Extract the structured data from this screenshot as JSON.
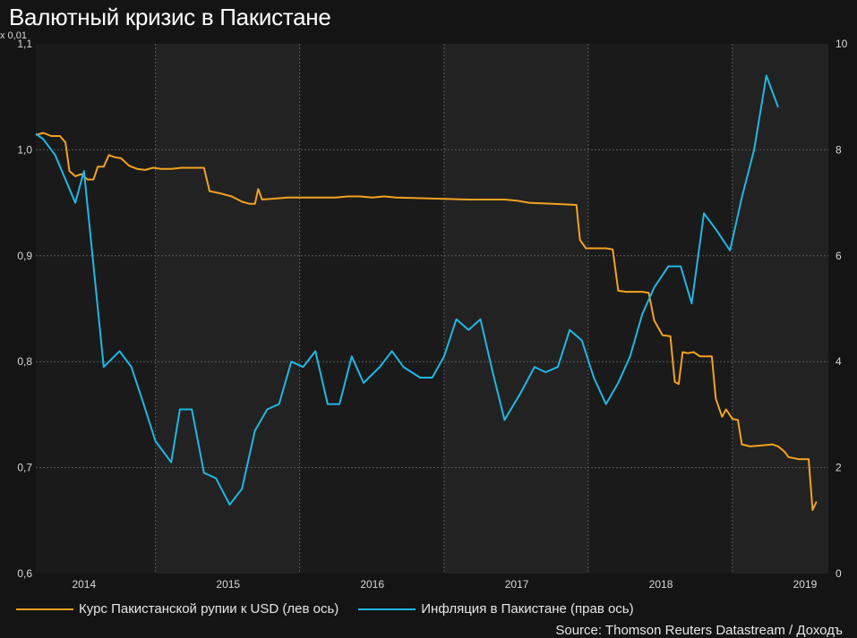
{
  "title": "Валютный кризис в Пакистане",
  "source": "Source: Thomson Reuters Datastream / Доходъ",
  "colors": {
    "background": "#141414",
    "plot_band_dark": "#1a1a1a",
    "plot_band_light": "#222222",
    "rupee": "#f3a221",
    "inflation": "#1fb7e4",
    "grid": "#5a5a5a"
  },
  "chart_data": {
    "type": "line",
    "title": "Валютный кризис в Пакистане",
    "left_axis": {
      "unit_label": "x 0,01",
      "ylim": [
        0.6,
        1.1
      ],
      "ticks": [
        "0,6",
        "0,7",
        "0,8",
        "0,9",
        "1,0",
        "1,1"
      ]
    },
    "right_axis": {
      "ylim": [
        0,
        10
      ],
      "ticks": [
        "0",
        "2",
        "4",
        "6",
        "8",
        "10"
      ]
    },
    "x_range": [
      "2013-09-01",
      "2019-03-01"
    ],
    "x_ticks": [
      "2014",
      "2015",
      "2016",
      "2017",
      "2018",
      "2019"
    ],
    "grid": true,
    "legend_position": "bottom-left",
    "series": [
      {
        "name": "Курс Пакистанской рупии к USD (лев ось)",
        "axis": "left",
        "color": "#f3a221",
        "points": [
          [
            "2013-09-01",
            1.014
          ],
          [
            "2013-09-20",
            1.016
          ],
          [
            "2013-10-10",
            1.013
          ],
          [
            "2013-11-01",
            1.013
          ],
          [
            "2013-11-15",
            1.007
          ],
          [
            "2013-11-25",
            0.98
          ],
          [
            "2013-12-10",
            0.975
          ],
          [
            "2013-12-25",
            0.977
          ],
          [
            "2014-01-10",
            0.972
          ],
          [
            "2014-01-25",
            0.972
          ],
          [
            "2014-02-05",
            0.984
          ],
          [
            "2014-02-20",
            0.984
          ],
          [
            "2014-03-05",
            0.995
          ],
          [
            "2014-03-20",
            0.993
          ],
          [
            "2014-04-05",
            0.992
          ],
          [
            "2014-04-25",
            0.985
          ],
          [
            "2014-05-15",
            0.982
          ],
          [
            "2014-06-05",
            0.981
          ],
          [
            "2014-06-25",
            0.983
          ],
          [
            "2014-07-15",
            0.982
          ],
          [
            "2014-08-10",
            0.982
          ],
          [
            "2014-09-05",
            0.983
          ],
          [
            "2014-10-01",
            0.983
          ],
          [
            "2014-11-01",
            0.983
          ],
          [
            "2014-11-15",
            0.961
          ],
          [
            "2014-12-10",
            0.959
          ],
          [
            "2015-01-10",
            0.956
          ],
          [
            "2015-02-05",
            0.951
          ],
          [
            "2015-02-25",
            0.949
          ],
          [
            "2015-03-10",
            0.949
          ],
          [
            "2015-03-18",
            0.963
          ],
          [
            "2015-03-28",
            0.953
          ],
          [
            "2015-05-01",
            0.954
          ],
          [
            "2015-06-01",
            0.955
          ],
          [
            "2015-07-01",
            0.955
          ],
          [
            "2015-08-01",
            0.955
          ],
          [
            "2015-09-01",
            0.955
          ],
          [
            "2015-10-01",
            0.955
          ],
          [
            "2015-11-01",
            0.956
          ],
          [
            "2015-12-01",
            0.956
          ],
          [
            "2016-01-01",
            0.955
          ],
          [
            "2016-02-01",
            0.956
          ],
          [
            "2016-03-01",
            0.955
          ],
          [
            "2016-06-01",
            0.954
          ],
          [
            "2016-09-01",
            0.953
          ],
          [
            "2016-12-01",
            0.953
          ],
          [
            "2017-01-01",
            0.952
          ],
          [
            "2017-02-01",
            0.95
          ],
          [
            "2017-04-01",
            0.949
          ],
          [
            "2017-06-01",
            0.948
          ],
          [
            "2017-06-10",
            0.915
          ],
          [
            "2017-06-25",
            0.907
          ],
          [
            "2017-08-15",
            0.907
          ],
          [
            "2017-09-01",
            0.906
          ],
          [
            "2017-09-15",
            0.867
          ],
          [
            "2017-10-05",
            0.866
          ],
          [
            "2017-11-15",
            0.866
          ],
          [
            "2017-12-01",
            0.865
          ],
          [
            "2017-12-15",
            0.839
          ],
          [
            "2018-01-05",
            0.825
          ],
          [
            "2018-01-25",
            0.824
          ],
          [
            "2018-02-05",
            0.781
          ],
          [
            "2018-02-15",
            0.779
          ],
          [
            "2018-02-25",
            0.809
          ],
          [
            "2018-03-10",
            0.808
          ],
          [
            "2018-03-25",
            0.809
          ],
          [
            "2018-04-10",
            0.805
          ],
          [
            "2018-05-10",
            0.805
          ],
          [
            "2018-05-20",
            0.765
          ],
          [
            "2018-06-05",
            0.748
          ],
          [
            "2018-06-15",
            0.755
          ],
          [
            "2018-07-01",
            0.746
          ],
          [
            "2018-07-15",
            0.745
          ],
          [
            "2018-07-25",
            0.722
          ],
          [
            "2018-08-15",
            0.72
          ],
          [
            "2018-09-15",
            0.721
          ],
          [
            "2018-10-10",
            0.722
          ],
          [
            "2018-10-25",
            0.72
          ],
          [
            "2018-11-10",
            0.715
          ],
          [
            "2018-11-20",
            0.71
          ],
          [
            "2018-12-15",
            0.708
          ],
          [
            "2019-01-10",
            0.708
          ],
          [
            "2019-01-20",
            0.66
          ],
          [
            "2019-01-30",
            0.668
          ]
        ]
      },
      {
        "name": "Инфляция в Пакистане (прав ось)",
        "axis": "right",
        "color": "#1fb7e4",
        "points": [
          [
            "2013-09-01",
            8.3
          ],
          [
            "2013-09-20",
            8.2
          ],
          [
            "2013-10-20",
            7.9
          ],
          [
            "2013-12-10",
            7.0
          ],
          [
            "2014-01-01",
            7.6
          ],
          [
            "2014-02-20",
            3.9
          ],
          [
            "2014-04-01",
            4.2
          ],
          [
            "2014-05-01",
            3.9
          ],
          [
            "2014-06-01",
            3.2
          ],
          [
            "2014-07-01",
            2.5
          ],
          [
            "2014-08-10",
            2.1
          ],
          [
            "2014-09-01",
            3.1
          ],
          [
            "2014-10-01",
            3.1
          ],
          [
            "2014-11-01",
            1.9
          ],
          [
            "2014-12-01",
            1.8
          ],
          [
            "2015-01-05",
            1.3
          ],
          [
            "2015-02-05",
            1.6
          ],
          [
            "2015-03-10",
            2.7
          ],
          [
            "2015-04-10",
            3.1
          ],
          [
            "2015-05-10",
            3.2
          ],
          [
            "2015-06-10",
            4.0
          ],
          [
            "2015-07-10",
            3.9
          ],
          [
            "2015-08-10",
            4.2
          ],
          [
            "2015-09-10",
            3.2
          ],
          [
            "2015-10-10",
            3.2
          ],
          [
            "2015-11-10",
            4.1
          ],
          [
            "2015-12-10",
            3.6
          ],
          [
            "2016-01-20",
            3.9
          ],
          [
            "2016-02-20",
            4.2
          ],
          [
            "2016-03-20",
            3.9
          ],
          [
            "2016-05-01",
            3.7
          ],
          [
            "2016-06-01",
            3.7
          ],
          [
            "2016-07-01",
            4.1
          ],
          [
            "2016-08-01",
            4.8
          ],
          [
            "2016-09-01",
            4.6
          ],
          [
            "2016-10-01",
            4.8
          ],
          [
            "2016-11-01",
            3.8
          ],
          [
            "2016-12-01",
            2.9
          ],
          [
            "2017-01-10",
            3.4
          ],
          [
            "2017-02-15",
            3.9
          ],
          [
            "2017-03-15",
            3.8
          ],
          [
            "2017-04-15",
            3.9
          ],
          [
            "2017-05-15",
            4.6
          ],
          [
            "2017-06-15",
            4.4
          ],
          [
            "2017-07-15",
            3.7
          ],
          [
            "2017-08-15",
            3.2
          ],
          [
            "2017-09-15",
            3.6
          ],
          [
            "2017-10-15",
            4.1
          ],
          [
            "2017-11-15",
            4.9
          ],
          [
            "2017-12-15",
            5.4
          ],
          [
            "2018-01-20",
            5.8
          ],
          [
            "2018-02-20",
            5.8
          ],
          [
            "2018-03-20",
            5.1
          ],
          [
            "2018-04-20",
            6.8
          ],
          [
            "2018-05-20",
            6.5
          ],
          [
            "2018-06-25",
            6.1
          ],
          [
            "2018-07-25",
            7.1
          ],
          [
            "2018-08-25",
            8.0
          ],
          [
            "2018-09-25",
            9.4
          ],
          [
            "2018-10-25",
            8.8
          ]
        ]
      }
    ]
  }
}
